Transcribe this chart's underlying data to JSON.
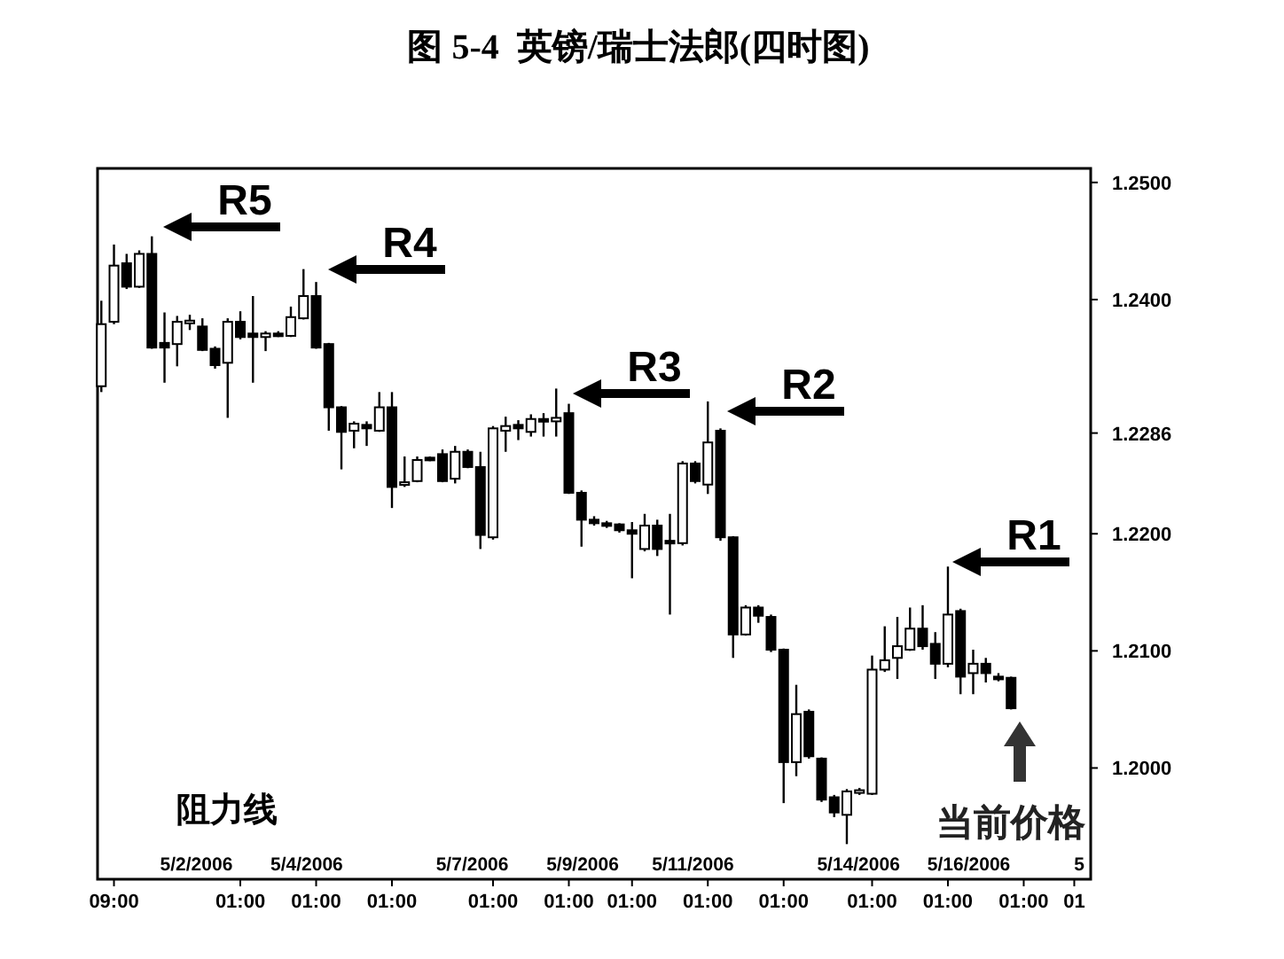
{
  "chart_data": {
    "type": "candlestick",
    "title": "图 5-4  英镑/瑞士法郎(四时图)",
    "color": "#000000",
    "categories": [
      null,
      "09:00",
      null,
      null,
      null,
      null,
      null,
      null,
      null,
      null,
      null,
      "01:00",
      null,
      null,
      null,
      null,
      null,
      "01:00",
      null,
      null,
      null,
      null,
      null,
      "01:00",
      null,
      null,
      null,
      null,
      null,
      null,
      null,
      "01:00",
      null,
      null,
      null,
      null,
      null,
      "01:00",
      null,
      null,
      null,
      null,
      "01:00",
      null,
      null,
      null,
      null,
      null,
      "01:00",
      null,
      null,
      null,
      null,
      null,
      "01:00",
      null,
      null,
      null,
      null,
      null,
      null,
      "01:00",
      null,
      null,
      null,
      null,
      null,
      "01:00",
      null,
      null,
      null,
      null,
      null,
      "01:00",
      null,
      null,
      null,
      "01",
      null
    ],
    "ohlc": [
      [
        1.2326,
        1.2399,
        1.2321,
        1.2379
      ],
      [
        1.2381,
        1.2447,
        1.2379,
        1.2429
      ],
      [
        1.2431,
        1.2439,
        1.2409,
        1.2411
      ],
      [
        1.2411,
        1.2442,
        1.241,
        1.2439
      ],
      [
        1.2439,
        1.2454,
        1.2358,
        1.2359
      ],
      [
        1.2363,
        1.2389,
        1.2329,
        1.2359
      ],
      [
        1.2362,
        1.2386,
        1.2343,
        1.2381
      ],
      [
        1.238,
        1.2387,
        1.2374,
        1.2382
      ],
      [
        1.2377,
        1.2384,
        1.2356,
        1.2357
      ],
      [
        1.2358,
        1.236,
        1.2341,
        1.2344
      ],
      [
        1.2346,
        1.2384,
        1.2299,
        1.2381
      ],
      [
        1.2381,
        1.239,
        1.2366,
        1.2368
      ],
      [
        1.2371,
        1.2403,
        1.2329,
        1.2368
      ],
      [
        1.2368,
        1.2373,
        1.2356,
        1.2371
      ],
      [
        1.2371,
        1.2373,
        1.2368,
        1.2369
      ],
      [
        1.2369,
        1.2394,
        1.2368,
        1.2385
      ],
      [
        1.2384,
        1.2426,
        1.2383,
        1.2403
      ],
      [
        1.2403,
        1.2415,
        1.2358,
        1.2359
      ],
      [
        1.2362,
        1.2363,
        1.2288,
        1.2308
      ],
      [
        1.2308,
        1.2309,
        1.2255,
        1.2287
      ],
      [
        1.2288,
        1.2296,
        1.2273,
        1.2294
      ],
      [
        1.2293,
        1.2296,
        1.2275,
        1.229
      ],
      [
        1.2288,
        1.2321,
        1.2287,
        1.2308
      ],
      [
        1.2308,
        1.2321,
        1.2222,
        1.224
      ],
      [
        1.2242,
        1.2266,
        1.224,
        1.2244
      ],
      [
        1.2245,
        1.2266,
        1.2244,
        1.2263
      ],
      [
        1.2265,
        1.2266,
        1.2262,
        1.2263
      ],
      [
        1.2268,
        1.2272,
        1.2244,
        1.2245
      ],
      [
        1.2247,
        1.2275,
        1.2243,
        1.227
      ],
      [
        1.227,
        1.2272,
        1.2256,
        1.2257
      ],
      [
        1.2257,
        1.227,
        1.2187,
        1.2199
      ],
      [
        1.2197,
        1.2292,
        1.2195,
        1.229
      ],
      [
        1.2288,
        1.23,
        1.227,
        1.2292
      ],
      [
        1.2293,
        1.2297,
        1.228,
        1.229
      ],
      [
        1.2287,
        1.2302,
        1.2283,
        1.2298
      ],
      [
        1.2298,
        1.2303,
        1.2283,
        1.2296
      ],
      [
        1.2296,
        1.2324,
        1.2283,
        1.2299
      ],
      [
        1.2303,
        1.2311,
        1.2234,
        1.2235
      ],
      [
        1.2235,
        1.2237,
        1.2189,
        1.2212
      ],
      [
        1.2212,
        1.2215,
        1.2207,
        1.2209
      ],
      [
        1.2209,
        1.2211,
        1.2205,
        1.2208
      ],
      [
        1.2208,
        1.2209,
        1.2201,
        1.2203
      ],
      [
        1.2203,
        1.221,
        1.2162,
        1.22
      ],
      [
        1.2187,
        1.2217,
        1.2185,
        1.2207
      ],
      [
        1.2207,
        1.2212,
        1.2181,
        1.2187
      ],
      [
        1.2194,
        1.2217,
        1.2131,
        1.2192
      ],
      [
        1.2192,
        1.2262,
        1.219,
        1.226
      ],
      [
        1.226,
        1.2262,
        1.2243,
        1.2245
      ],
      [
        1.2242,
        1.2313,
        1.2234,
        1.2278
      ],
      [
        1.2288,
        1.229,
        1.2194,
        1.2197
      ],
      [
        1.2197,
        1.2198,
        1.2094,
        1.2114
      ],
      [
        1.2114,
        1.2139,
        1.2113,
        1.2137
      ],
      [
        1.2137,
        1.2139,
        1.2124,
        1.213
      ],
      [
        1.2129,
        1.2131,
        1.2099,
        1.2101
      ],
      [
        1.2101,
        1.2102,
        1.197,
        1.2005
      ],
      [
        1.2005,
        1.2071,
        1.1993,
        1.2046
      ],
      [
        1.2048,
        1.205,
        1.2008,
        1.201
      ],
      [
        1.2008,
        1.2009,
        1.1971,
        1.1973
      ],
      [
        1.1975,
        1.1977,
        1.1958,
        1.1962
      ],
      [
        1.196,
        1.1982,
        1.1935,
        1.198
      ],
      [
        1.1979,
        1.1983,
        1.1977,
        1.1981
      ],
      [
        1.1978,
        1.2096,
        1.1977,
        1.2084
      ],
      [
        1.2084,
        1.2121,
        1.2082,
        1.2092
      ],
      [
        1.2094,
        1.2129,
        1.2076,
        1.2104
      ],
      [
        1.2101,
        1.2137,
        1.21,
        1.2119
      ],
      [
        1.2119,
        1.2139,
        1.2101,
        1.2104
      ],
      [
        1.2106,
        1.2116,
        1.2076,
        1.2089
      ],
      [
        1.2089,
        1.2172,
        1.2086,
        1.2131
      ],
      [
        1.2134,
        1.2136,
        1.2063,
        1.2078
      ],
      [
        1.2081,
        1.2101,
        1.2063,
        1.2089
      ],
      [
        1.2089,
        1.2094,
        1.2073,
        1.2081
      ],
      [
        1.2078,
        1.2081,
        1.2074,
        1.2076
      ],
      [
        1.2077,
        1.2078,
        1.205,
        1.2051
      ],
      null,
      null,
      null,
      null,
      null,
      null
    ],
    "x2lim": [
      "2006-04-30T05:00",
      "2006-05-18T05:00"
    ],
    "x2ticks": [
      {
        "value": "2006-05-02",
        "label": "5/2/2006"
      },
      {
        "value": "2006-05-04",
        "label": "5/4/2006"
      },
      {
        "value": "2006-05-07",
        "label": "5/7/2006"
      },
      {
        "value": "2006-05-09",
        "label": "5/9/2006"
      },
      {
        "value": "2006-05-11",
        "label": "5/11/2006"
      },
      {
        "value": "2006-05-14",
        "label": "5/14/2006"
      },
      {
        "value": "2006-05-16",
        "label": "5/16/2006"
      },
      {
        "value": "2006-05-18",
        "label": "5"
      }
    ],
    "ylim": [
      1.1905,
      1.2512
    ],
    "yticks": [
      {
        "value": 1.25,
        "label": "1.2500"
      },
      {
        "value": 1.24,
        "label": "1.2400"
      },
      {
        "value": 1.2286,
        "label": "1.2286"
      },
      {
        "value": 1.22,
        "label": "1.2200"
      },
      {
        "value": 1.21,
        "label": "1.2100"
      },
      {
        "value": 1.2,
        "label": "1.2000"
      }
    ],
    "annotations": [
      "R5",
      "R4",
      "R3",
      "R2",
      "R1",
      "当前价格",
      "阻力线"
    ]
  }
}
